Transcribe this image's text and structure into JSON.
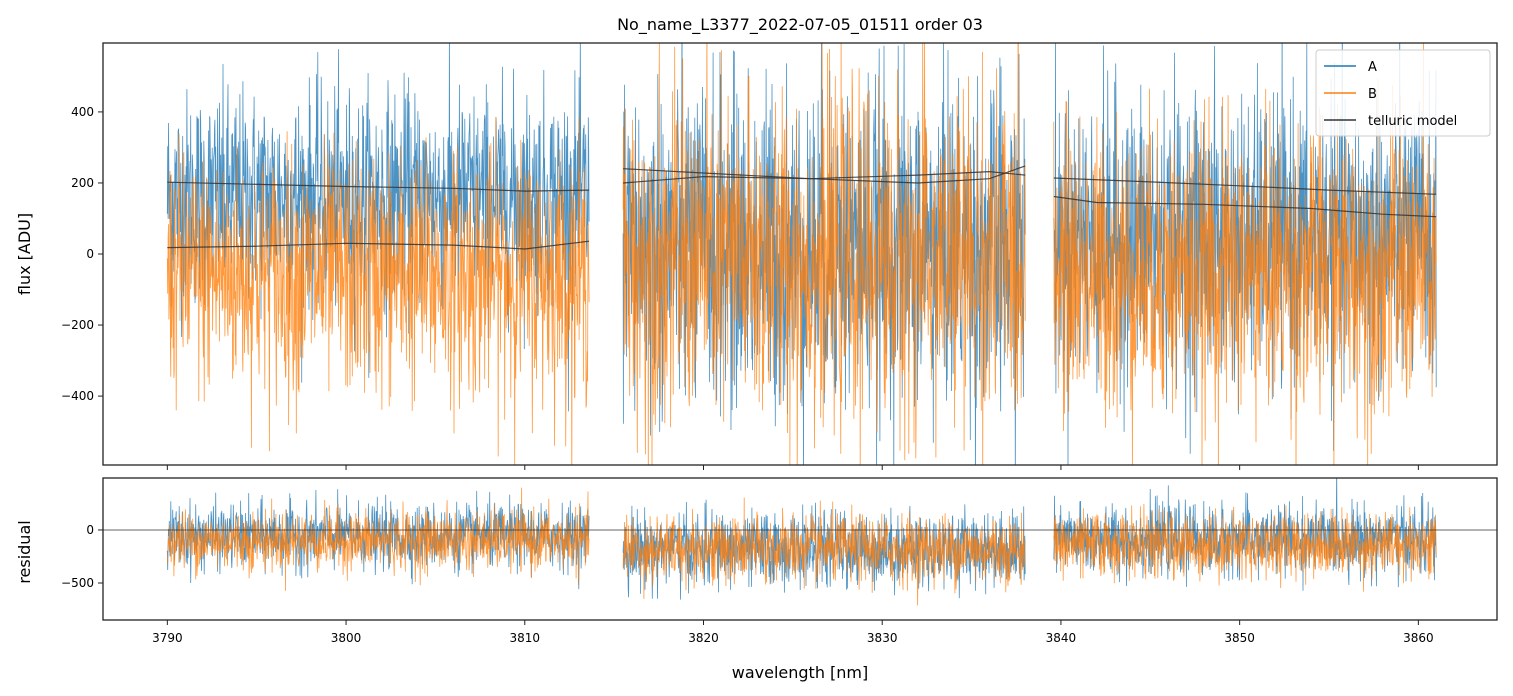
{
  "chart_data": {
    "type": "line",
    "title": "No_name_L3377_2022-07-05_01511  order 03",
    "xlabel": "wavelength [nm]",
    "ylabel_top": "flux [ADU]",
    "ylabel_bottom": "residual",
    "xlim": [
      3786.4,
      3864.4
    ],
    "ylim_top": [
      -594,
      594
    ],
    "ylim_bottom": [
      -849,
      490
    ],
    "xticks": [
      3790,
      3800,
      3810,
      3820,
      3830,
      3840,
      3850,
      3860
    ],
    "yticks_top": [
      -400,
      -200,
      0,
      200,
      400
    ],
    "yticks_bottom": [
      -500,
      0
    ],
    "legend": {
      "placement": "top-right",
      "entries": [
        "A",
        "B",
        "telluric model"
      ]
    },
    "colors": {
      "A": "#1f77b4",
      "B": "#ff7f0e",
      "model": "#333333"
    },
    "segments": [
      {
        "x": [
          3790.0,
          3813.6
        ],
        "model_A": [
          [
            3790,
            202
          ],
          [
            3800,
            190
          ],
          [
            3806,
            185
          ],
          [
            3810,
            177
          ],
          [
            3813.6,
            180
          ]
        ],
        "model_B": [
          [
            3790,
            18
          ],
          [
            3795,
            22
          ],
          [
            3800,
            30
          ],
          [
            3806,
            25
          ],
          [
            3810,
            14
          ],
          [
            3813.6,
            36
          ]
        ],
        "A": {
          "mean": 160,
          "std": 150
        },
        "B": {
          "mean": -60,
          "std": 170
        },
        "resA": {
          "mean": -60,
          "std": 150
        },
        "resB": {
          "mean": -100,
          "std": 140
        }
      },
      {
        "x": [
          3815.5,
          3838.0
        ],
        "model_A": [
          [
            3815.5,
            240
          ],
          [
            3820,
            228
          ],
          [
            3826,
            212
          ],
          [
            3832,
            222
          ],
          [
            3836,
            232
          ],
          [
            3838,
            222
          ]
        ],
        "model_B": [
          [
            3815.5,
            200
          ],
          [
            3820,
            218
          ],
          [
            3826,
            212
          ],
          [
            3832,
            200
          ],
          [
            3836,
            212
          ],
          [
            3838,
            248
          ]
        ],
        "A": {
          "mean": 20,
          "std": 230
        },
        "B": {
          "mean": -20,
          "std": 230
        },
        "resA": {
          "mean": -180,
          "std": 170
        },
        "resB": {
          "mean": -180,
          "std": 160
        }
      },
      {
        "x": [
          3839.6,
          3861.0
        ],
        "model_A": [
          [
            3839.6,
            214
          ],
          [
            3845,
            203
          ],
          [
            3850,
            192
          ],
          [
            3855,
            180
          ],
          [
            3861,
            168
          ]
        ],
        "model_B": [
          [
            3839.6,
            162
          ],
          [
            3842,
            145
          ],
          [
            3848,
            140
          ],
          [
            3854,
            128
          ],
          [
            3858,
            112
          ],
          [
            3861,
            105
          ]
        ],
        "A": {
          "mean": 40,
          "std": 200
        },
        "B": {
          "mean": -50,
          "std": 200
        },
        "resA": {
          "mean": -90,
          "std": 160
        },
        "resB": {
          "mean": -140,
          "std": 150
        }
      }
    ]
  }
}
